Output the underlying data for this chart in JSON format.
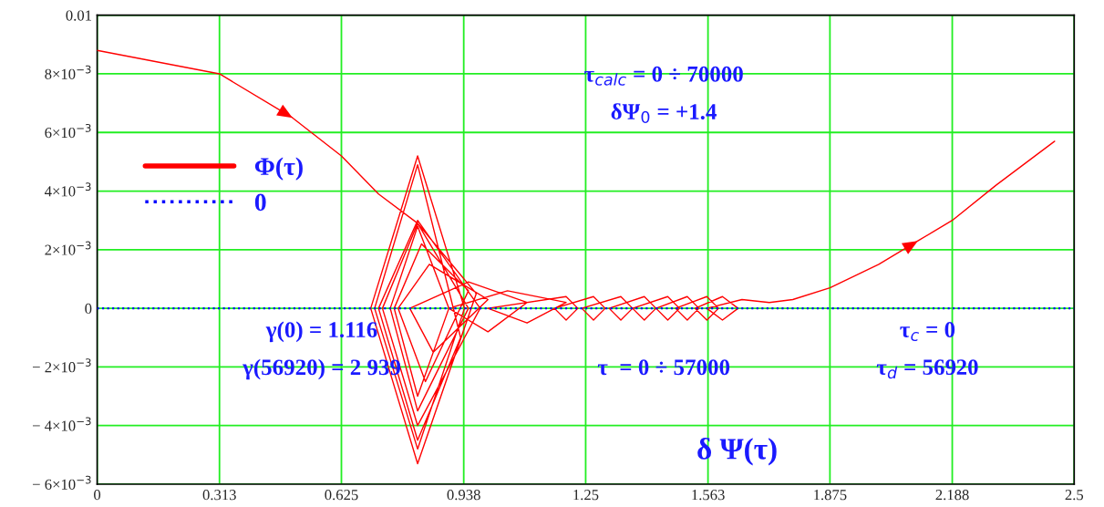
{
  "chart_data": {
    "type": "line",
    "xlabel": "δ Ψ(τ)",
    "series": [
      {
        "name": "Φ(τ)",
        "color": "#ff0000",
        "line_style": "solid",
        "x": [
          0,
          0.313,
          0.5,
          0.625,
          0.72,
          0.82,
          0.97,
          0.82,
          0.7,
          0.82,
          0.94,
          0.82,
          0.71,
          0.82,
          0.93,
          0.82,
          0.72,
          0.82,
          0.98,
          0.82,
          0.73,
          0.82,
          0.95,
          0.82,
          0.75,
          0.82,
          0.9,
          0.82,
          0.76,
          0.83,
          0.95,
          0.84,
          0.77,
          0.85,
          1.0,
          0.86,
          0.8,
          0.95,
          1.1,
          1.0,
          0.9,
          1.05,
          1.2,
          1.1,
          1.0,
          1.2,
          1.23,
          1.2,
          1.17,
          1.27,
          1.3,
          1.27,
          1.24,
          1.34,
          1.37,
          1.34,
          1.31,
          1.4,
          1.43,
          1.4,
          1.37,
          1.46,
          1.49,
          1.46,
          1.43,
          1.51,
          1.54,
          1.51,
          1.48,
          1.56,
          1.59,
          1.56,
          1.53,
          1.6,
          1.64,
          1.6,
          1.56,
          1.65,
          1.72,
          1.78,
          1.875,
          2.0,
          2.1,
          2.188,
          2.3,
          2.45
        ],
        "values": [
          0.0088,
          0.008,
          0.0065,
          0.0052,
          0.0039,
          0.0029,
          0.0005,
          -0.0053,
          0,
          0.0052,
          0,
          -0.0048,
          0,
          0.0049,
          -0.001,
          -0.0045,
          0,
          0.003,
          0,
          -0.004,
          0,
          0.0029,
          0,
          -0.0035,
          0,
          0.0028,
          0,
          -0.003,
          0,
          0.0022,
          0.0006,
          -0.0025,
          0,
          0.0015,
          0.0003,
          -0.0015,
          0,
          0.0009,
          0.0002,
          -0.0008,
          0,
          0.0006,
          0.0002,
          -0.0005,
          0,
          0.0004,
          0,
          -0.0004,
          0,
          0.0004,
          0,
          -0.0004,
          0,
          0.0004,
          0,
          -0.0004,
          0,
          0.0004,
          0,
          -0.0004,
          0,
          0.0004,
          0,
          -0.0004,
          0,
          0.0004,
          0,
          -0.0004,
          0,
          0.0004,
          0,
          -0.0004,
          0,
          0.0004,
          0,
          -0.0004,
          0,
          0.0003,
          0.0002,
          0.0003,
          0.0007,
          0.0015,
          0.0023,
          0.003,
          0.0042,
          0.0057
        ]
      },
      {
        "name": "0",
        "color": "#0000ff",
        "line_style": "dotted",
        "x": [
          0,
          2.5
        ],
        "values": [
          0,
          0
        ]
      }
    ],
    "annotations": [
      "τ$_{calc}$ = 0 ÷ 70000",
      "δΨ$_{0}$ = +1.4",
      "γ(0) = 1.116",
      "γ(56920) = 2 939",
      "τ  = 0 ÷ 57000",
      "τ$_{c}$ = 0",
      "τ$_{d}$ = 56920"
    ],
    "xlim": [
      0,
      2.5
    ],
    "ylim": [
      -0.006,
      0.01
    ],
    "xticks": [
      0,
      0.313,
      0.625,
      0.938,
      1.25,
      1.563,
      1.875,
      2.188,
      2.5
    ],
    "yticks": [
      {
        "value": -0.006,
        "label": "− 6×10$^{−3}$"
      },
      {
        "value": -0.004,
        "label": "− 4×10$^{−3}$"
      },
      {
        "value": -0.002,
        "label": "− 2×10$^{−3}$"
      },
      0,
      {
        "value": 0.002,
        "label": "2×10$^{−3}$"
      },
      {
        "value": 0.004,
        "label": "4×10$^{−3}$"
      },
      {
        "value": 0.006,
        "label": "6×10$^{−3}$"
      },
      {
        "value": 0.008,
        "label": "8×10$^{−3}$"
      },
      0.01
    ],
    "grid": true,
    "legend": "upper left",
    "marker": "none"
  }
}
